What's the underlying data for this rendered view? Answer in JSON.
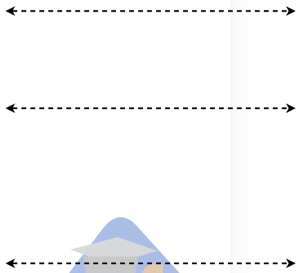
{
  "diagram": {
    "arrows": [
      {
        "name": "arrow-1",
        "style": "dashed",
        "heads": "both",
        "color": "#000000"
      },
      {
        "name": "arrow-2",
        "style": "dashed",
        "heads": "both",
        "color": "#000000"
      },
      {
        "name": "arrow-3",
        "style": "dashed",
        "heads": "both",
        "color": "#000000"
      }
    ],
    "watermark": {
      "icon": "graduation-cap-icon",
      "colors": {
        "shape": "#9bb3e1",
        "cap": "#d7d7d7",
        "accent": "#e8c9a8"
      }
    }
  }
}
